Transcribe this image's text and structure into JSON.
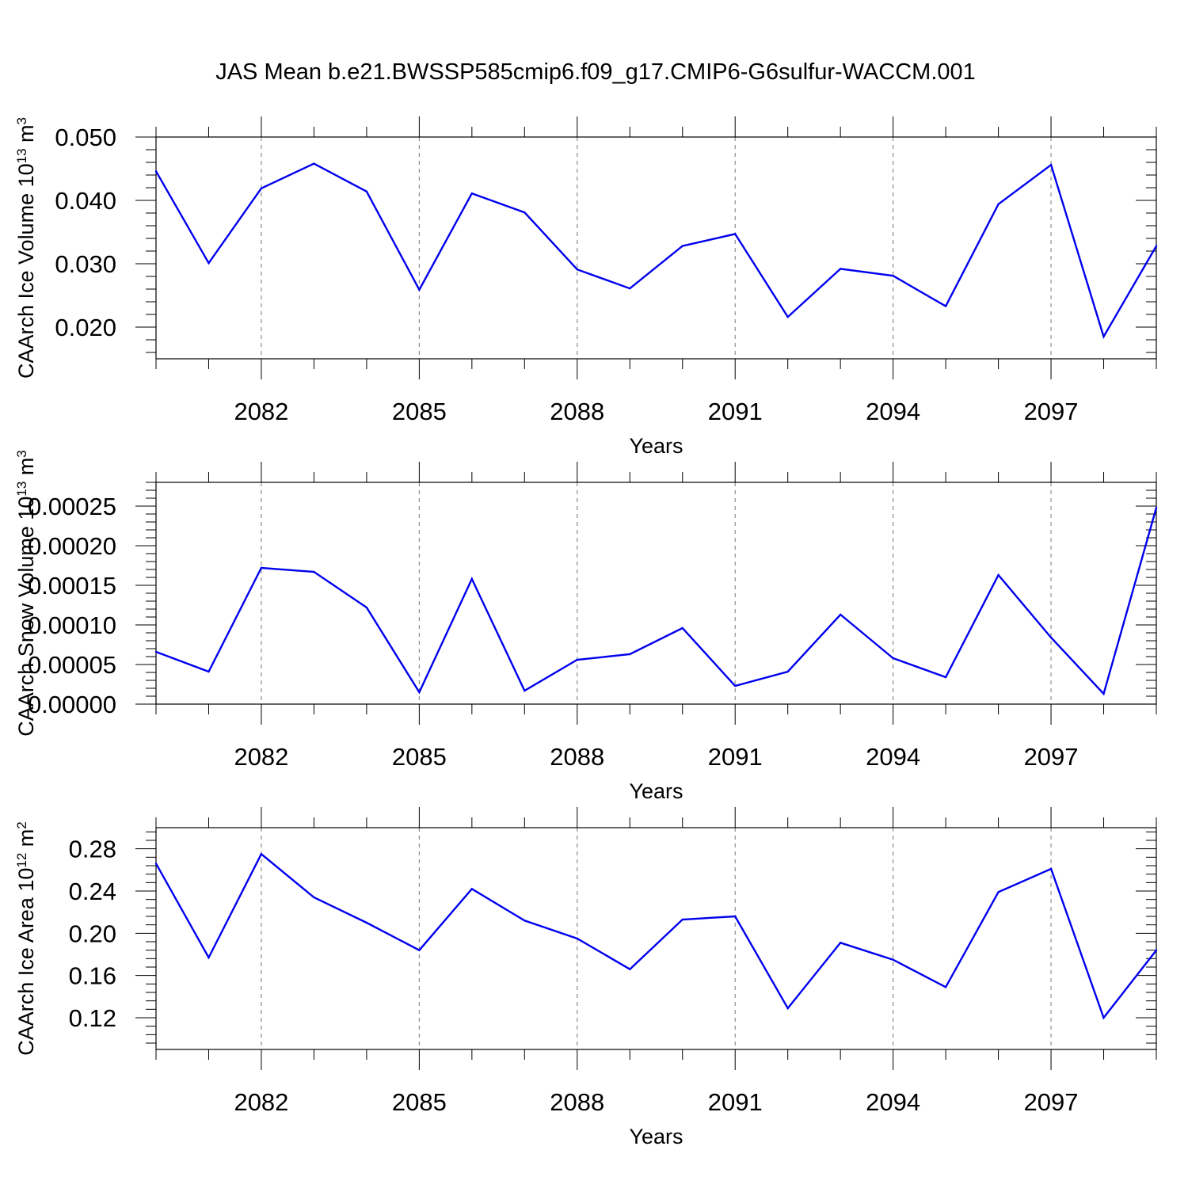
{
  "title": "JAS Mean b.e21.BWSSP585cmip6.f09_g17.CMIP6-G6sulfur-WACCM.001",
  "colors": {
    "line": "#0000ee",
    "axis": "#000000",
    "grid": "#777777"
  },
  "chart_data": [
    {
      "type": "line",
      "xlabel": "Years",
      "ylabel": "CAArch Ice Volume 10",
      "ylabel_sup1": "13",
      "ylabel_mid": " m",
      "ylabel_sup2": "3",
      "x": [
        2080,
        2081,
        2082,
        2083,
        2084,
        2085,
        2086,
        2087,
        2088,
        2089,
        2090,
        2091,
        2092,
        2093,
        2094,
        2095,
        2096,
        2097,
        2098,
        2099
      ],
      "values": [
        0.0446,
        0.0301,
        0.0419,
        0.0458,
        0.0414,
        0.0259,
        0.0411,
        0.0381,
        0.0291,
        0.0261,
        0.0328,
        0.0347,
        0.0216,
        0.0292,
        0.0281,
        0.0233,
        0.0394,
        0.0456,
        0.0185,
        0.0328
      ],
      "xlim": [
        2080,
        2099
      ],
      "ylim": [
        0.015,
        0.05
      ],
      "yticks": [
        0.02,
        0.03,
        0.04,
        0.05
      ],
      "yticklabels": [
        "0.020",
        "0.030",
        "0.040",
        "0.050"
      ],
      "xticks": [
        2082,
        2085,
        2088,
        2091,
        2094,
        2097
      ],
      "xticklabels": [
        "2082",
        "2085",
        "2088",
        "2091",
        "2094",
        "2097"
      ],
      "grid": "vertical dashed at labeled years"
    },
    {
      "type": "line",
      "xlabel": "Years",
      "ylabel": "CAArch Snow Volume 10",
      "ylabel_sup1": "13",
      "ylabel_mid": " m",
      "ylabel_sup2": "3",
      "x": [
        2080,
        2081,
        2082,
        2083,
        2084,
        2085,
        2086,
        2087,
        2088,
        2089,
        2090,
        2091,
        2092,
        2093,
        2094,
        2095,
        2096,
        2097,
        2098,
        2099
      ],
      "values": [
        6.6e-05,
        4.1e-05,
        0.000172,
        0.000167,
        0.000122,
        1.5e-05,
        0.000158,
        1.7e-05,
        5.6e-05,
        6.3e-05,
        9.6e-05,
        2.3e-05,
        4.1e-05,
        0.000113,
        5.8e-05,
        3.4e-05,
        0.000163,
        8.4e-05,
        1.3e-05,
        0.000248
      ],
      "xlim": [
        2080,
        2099
      ],
      "ylim": [
        0,
        0.00028
      ],
      "yticks": [
        0,
        5e-05,
        0.0001,
        0.00015,
        0.0002,
        0.00025
      ],
      "yticklabels": [
        "0.00000",
        "0.00005",
        "0.00010",
        "0.00015",
        "0.00020",
        "0.00025"
      ],
      "xticks": [
        2082,
        2085,
        2088,
        2091,
        2094,
        2097
      ],
      "xticklabels": [
        "2082",
        "2085",
        "2088",
        "2091",
        "2094",
        "2097"
      ],
      "grid": "vertical dashed at labeled years"
    },
    {
      "type": "line",
      "xlabel": "Years",
      "ylabel": "CAArch Ice Area 10",
      "ylabel_sup1": "12",
      "ylabel_mid": " m",
      "ylabel_sup2": "2",
      "x": [
        2080,
        2081,
        2082,
        2083,
        2084,
        2085,
        2086,
        2087,
        2088,
        2089,
        2090,
        2091,
        2092,
        2093,
        2094,
        2095,
        2096,
        2097,
        2098,
        2099
      ],
      "values": [
        0.266,
        0.177,
        0.275,
        0.234,
        0.21,
        0.184,
        0.242,
        0.212,
        0.195,
        0.166,
        0.213,
        0.216,
        0.129,
        0.191,
        0.175,
        0.149,
        0.239,
        0.261,
        0.12,
        0.184
      ],
      "xlim": [
        2080,
        2099
      ],
      "ylim": [
        0.09,
        0.3
      ],
      "yticks": [
        0.12,
        0.16,
        0.2,
        0.24,
        0.28
      ],
      "yticklabels": [
        "0.12",
        "0.16",
        "0.20",
        "0.24",
        "0.28"
      ],
      "xticks": [
        2082,
        2085,
        2088,
        2091,
        2094,
        2097
      ],
      "xticklabels": [
        "2082",
        "2085",
        "2088",
        "2091",
        "2094",
        "2097"
      ],
      "grid": "vertical dashed at labeled years"
    }
  ]
}
